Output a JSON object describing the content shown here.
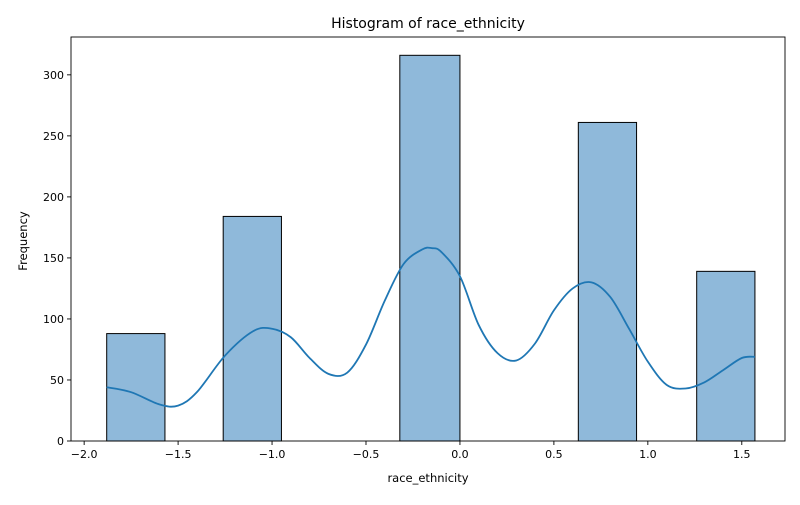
{
  "chart_data": {
    "type": "histogram",
    "title": "Histogram of race_ethnicity",
    "xlabel": "race_ethnicity",
    "ylabel": "Frequency",
    "xlim": [
      -2.07,
      1.73
    ],
    "ylim": [
      0,
      331
    ],
    "grid": false,
    "xticks": [
      -2.0,
      -1.5,
      -1.0,
      -0.5,
      0.0,
      0.5,
      1.0,
      1.5
    ],
    "xtick_labels": [
      "−2.0",
      "−1.5",
      "−1.0",
      "−0.5",
      "0.0",
      "0.5",
      "1.0",
      "1.5"
    ],
    "yticks": [
      0,
      50,
      100,
      150,
      200,
      250,
      300
    ],
    "ytick_labels": [
      "0",
      "50",
      "100",
      "150",
      "200",
      "250",
      "300"
    ],
    "bars": [
      {
        "x0": -1.88,
        "x1": -1.57,
        "value": 88
      },
      {
        "x0": -1.26,
        "x1": -0.95,
        "value": 184
      },
      {
        "x0": -0.32,
        "x1": 0.0,
        "value": 316
      },
      {
        "x0": 0.63,
        "x1": 0.94,
        "value": 261
      },
      {
        "x0": 1.26,
        "x1": 1.57,
        "value": 139
      }
    ],
    "kde": {
      "x": [
        -1.88,
        -1.75,
        -1.6,
        -1.5,
        -1.4,
        -1.25,
        -1.1,
        -1.0,
        -0.9,
        -0.8,
        -0.7,
        -0.6,
        -0.5,
        -0.4,
        -0.3,
        -0.2,
        -0.15,
        -0.1,
        0.0,
        0.1,
        0.2,
        0.3,
        0.4,
        0.5,
        0.6,
        0.7,
        0.8,
        0.9,
        1.0,
        1.1,
        1.2,
        1.3,
        1.4,
        1.5,
        1.57
      ],
      "y": [
        44,
        40,
        30,
        29,
        40,
        70,
        90,
        92,
        85,
        68,
        55,
        56,
        79,
        115,
        145,
        157,
        158,
        155,
        135,
        95,
        72,
        66,
        80,
        107,
        125,
        130,
        118,
        92,
        65,
        46,
        43,
        48,
        58,
        68,
        69
      ]
    },
    "bar_fill": "#8fb9da",
    "bar_edge": "#000000",
    "line_color": "#1f77b4"
  }
}
